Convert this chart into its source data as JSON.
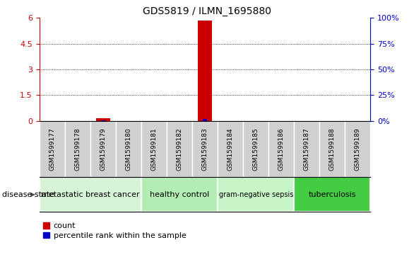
{
  "title": "GDS5819 / ILMN_1695880",
  "samples": [
    "GSM1599177",
    "GSM1599178",
    "GSM1599179",
    "GSM1599180",
    "GSM1599181",
    "GSM1599182",
    "GSM1599183",
    "GSM1599184",
    "GSM1599185",
    "GSM1599186",
    "GSM1599187",
    "GSM1599188",
    "GSM1599189"
  ],
  "counts": [
    0,
    0,
    0.15,
    0,
    0,
    0,
    5.85,
    0,
    0,
    0,
    0,
    0,
    0
  ],
  "percentiles": [
    0,
    0,
    0.22,
    0,
    0,
    0,
    1.75,
    0,
    0,
    0,
    0,
    0,
    0
  ],
  "ylim_left": [
    0,
    6
  ],
  "ylim_right": [
    0,
    100
  ],
  "yticks_left": [
    0,
    1.5,
    3,
    4.5,
    6
  ],
  "yticks_right": [
    0,
    25,
    50,
    75,
    100
  ],
  "ytick_labels_left": [
    "0",
    "1.5",
    "3",
    "4.5",
    "6"
  ],
  "ytick_labels_right": [
    "0%",
    "25%",
    "50%",
    "75%",
    "100%"
  ],
  "groups": [
    {
      "label": "metastatic breast cancer",
      "start": 0,
      "end": 4,
      "color": "#d6f5d6"
    },
    {
      "label": "healthy control",
      "start": 4,
      "end": 7,
      "color": "#b3edb3"
    },
    {
      "label": "gram-negative sepsis",
      "start": 7,
      "end": 10,
      "color": "#c8f5c8"
    },
    {
      "label": "tuberculosis",
      "start": 10,
      "end": 13,
      "color": "#44cc44"
    }
  ],
  "bar_color_count": "#cc0000",
  "bar_color_percentile": "#0000cc",
  "bg_color": "#ffffff",
  "sample_bg_color": "#d0d0d0",
  "sample_edge_color": "#ffffff",
  "legend_count_label": "count",
  "legend_percentile_label": "percentile rank within the sample",
  "disease_state_label": "disease state",
  "title_fontsize": 10,
  "tick_fontsize": 8,
  "sample_fontsize": 6.5,
  "group_fontsize_default": 8,
  "group_fontsize_small": 7
}
